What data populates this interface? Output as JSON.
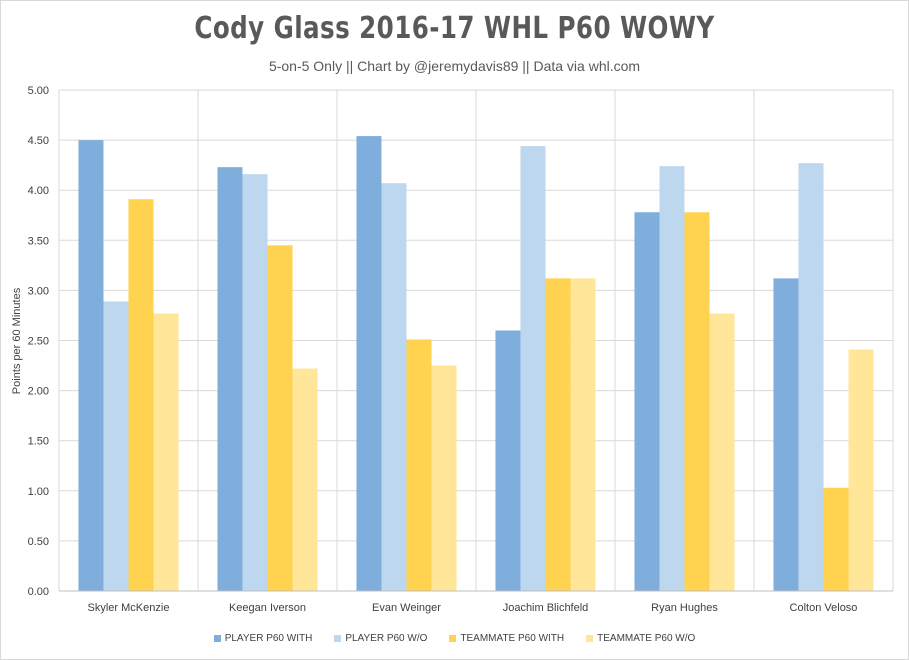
{
  "chart_data": {
    "type": "bar",
    "title": "Cody Glass 2016-17 WHL  P60 WOWY",
    "subtitle": "5-on-5 Only || Chart by @jeremydavis89 || Data via whl.com",
    "ylabel": "Points per 60 Minutes",
    "xlabel": "",
    "ylim": [
      0,
      5
    ],
    "yticks": [
      "0.00",
      "0.50",
      "1.00",
      "1.50",
      "2.00",
      "2.50",
      "3.00",
      "3.50",
      "4.00",
      "4.50",
      "5.00"
    ],
    "categories": [
      "Skyler McKenzie",
      "Keegan Iverson",
      "Evan Weinger",
      "Joachim Blichfeld",
      "Ryan Hughes",
      "Colton Veloso"
    ],
    "series": [
      {
        "name": "PLAYER P60 WITH",
        "color": "#7faedc",
        "values": [
          4.5,
          4.23,
          4.54,
          2.6,
          3.78,
          3.12
        ]
      },
      {
        "name": "PLAYER P60 W/O",
        "color": "#bdd7ee",
        "values": [
          2.89,
          4.16,
          4.07,
          4.44,
          4.24,
          4.27
        ]
      },
      {
        "name": "TEAMMATE P60 WITH",
        "color": "#ffd24f",
        "values": [
          3.91,
          3.45,
          2.51,
          3.12,
          3.78,
          1.03
        ]
      },
      {
        "name": "TEAMMATE P60 W/O",
        "color": "#ffe699",
        "values": [
          2.77,
          2.22,
          2.25,
          3.12,
          2.77,
          2.41
        ]
      }
    ],
    "grid": true,
    "legend_position": "bottom"
  }
}
